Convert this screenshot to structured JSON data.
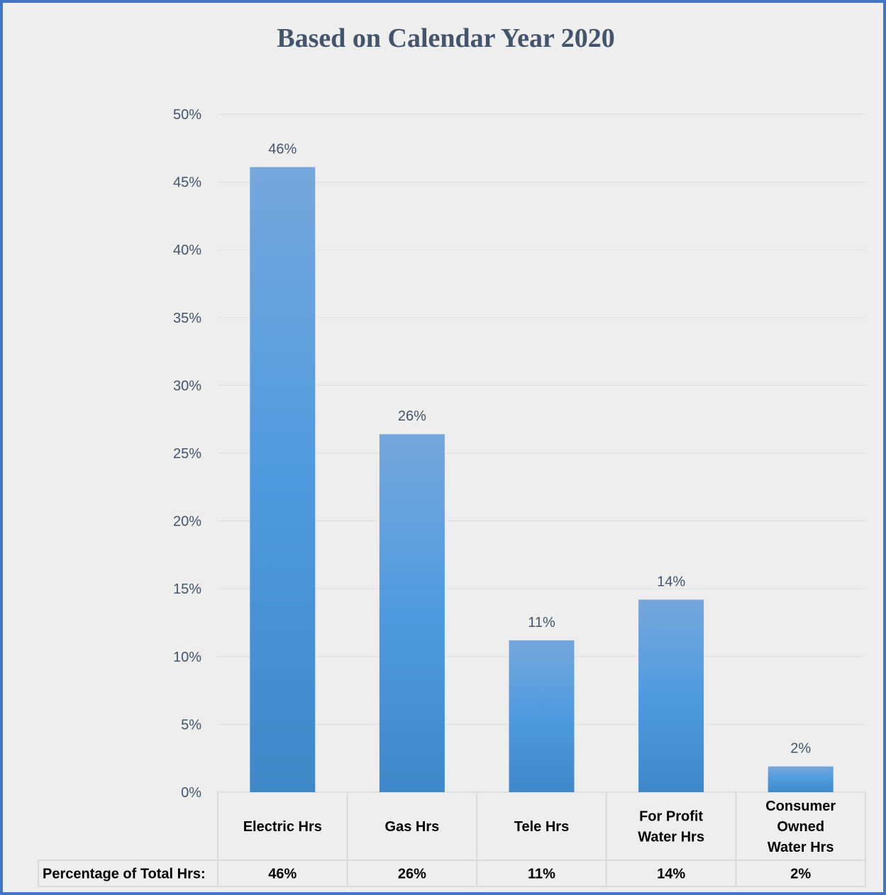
{
  "chart_data": {
    "type": "bar",
    "title": "Based on Calendar Year 2020",
    "categories": [
      [
        "Electric Hrs"
      ],
      [
        "Gas Hrs"
      ],
      [
        "Tele Hrs"
      ],
      [
        "For Profit",
        "Water Hrs"
      ],
      [
        "Consumer",
        "Owned",
        "Water Hrs"
      ]
    ],
    "series": [
      {
        "values": [
          46.1,
          26.4,
          11.2,
          14.2,
          1.9
        ]
      }
    ],
    "data_labels": [
      "46%",
      "26%",
      "11%",
      "14%",
      "2%"
    ],
    "ylim": [
      0,
      50
    ],
    "yticks": [
      "0%",
      "5%",
      "10%",
      "15%",
      "20%",
      "25%",
      "30%",
      "35%",
      "40%",
      "45%",
      "50%"
    ],
    "grid": true,
    "bar_color": "#5b9bd5",
    "table": {
      "row_label": "Percentage of Total Hrs:",
      "values": [
        "46%",
        "26%",
        "11%",
        "14%",
        "2%"
      ]
    }
  }
}
